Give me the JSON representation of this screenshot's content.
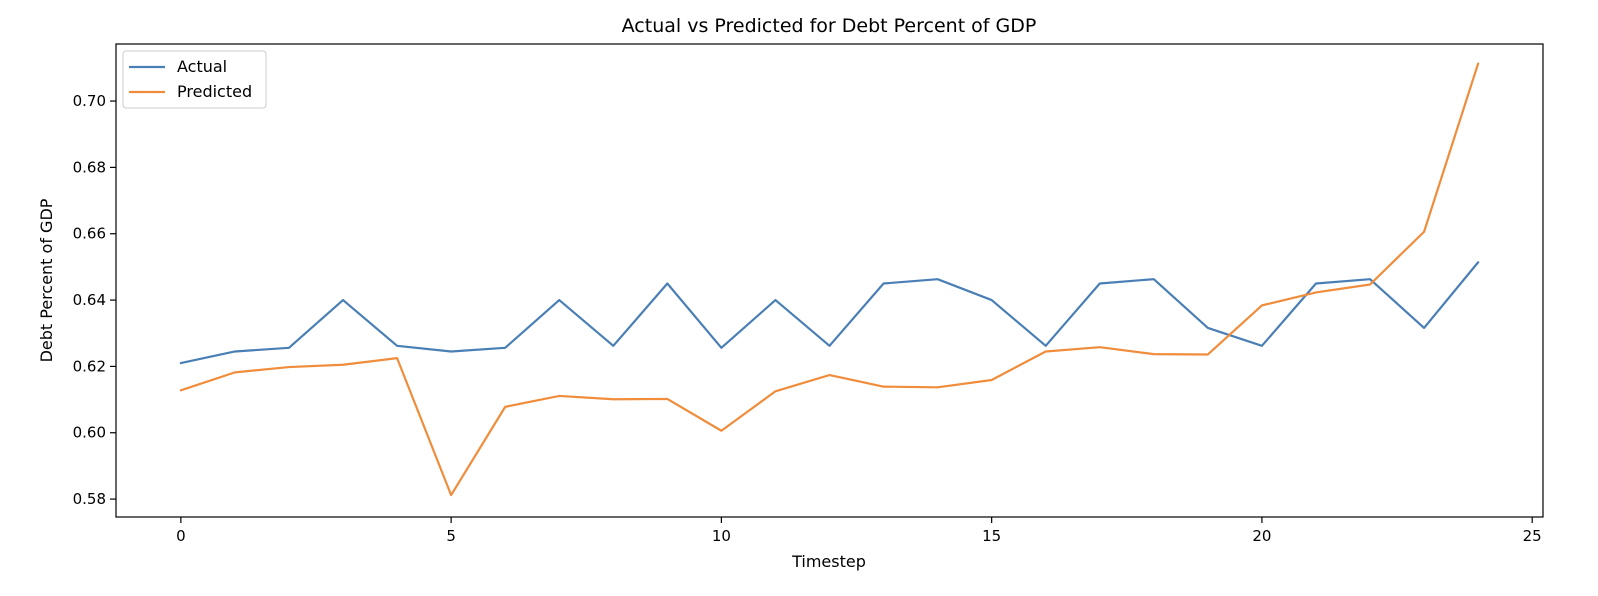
{
  "chart_data": {
    "type": "line",
    "title": "Actual vs Predicted for Debt Percent of GDP",
    "xlabel": "Timestep",
    "ylabel": "Debt Percent of GDP",
    "xlim": [
      -1.2,
      25.2
    ],
    "ylim": [
      0.5746,
      0.7172
    ],
    "xticks": [
      0,
      5,
      10,
      15,
      20,
      25
    ],
    "yticks": [
      0.58,
      0.6,
      0.62,
      0.64,
      0.66,
      0.68,
      0.7
    ],
    "ytick_labels": [
      "0.58",
      "0.60",
      "0.62",
      "0.64",
      "0.66",
      "0.68",
      "0.70"
    ],
    "grid": false,
    "legend_position": "top-left",
    "x": [
      0,
      1,
      2,
      3,
      4,
      5,
      6,
      7,
      8,
      9,
      10,
      11,
      12,
      13,
      14,
      15,
      16,
      17,
      18,
      19,
      20,
      21,
      22,
      23,
      24
    ],
    "series": [
      {
        "name": "Actual",
        "color": "#4a7fb5",
        "values": [
          0.621,
          0.6245,
          0.6256,
          0.64,
          0.6262,
          0.6245,
          0.6256,
          0.64,
          0.6262,
          0.645,
          0.6256,
          0.64,
          0.6262,
          0.645,
          0.6463,
          0.64,
          0.6262,
          0.645,
          0.6463,
          0.6316,
          0.6262,
          0.645,
          0.6463,
          0.6316,
          0.6514
        ]
      },
      {
        "name": "Predicted",
        "color": "#ef8d3c",
        "values": [
          0.6128,
          0.6182,
          0.6198,
          0.6205,
          0.6225,
          0.5812,
          0.6078,
          0.6111,
          0.6101,
          0.6102,
          0.6006,
          0.6125,
          0.6174,
          0.6139,
          0.6137,
          0.6159,
          0.6245,
          0.6258,
          0.6237,
          0.6236,
          0.6384,
          0.6423,
          0.6447,
          0.6606,
          0.7113
        ]
      }
    ]
  }
}
